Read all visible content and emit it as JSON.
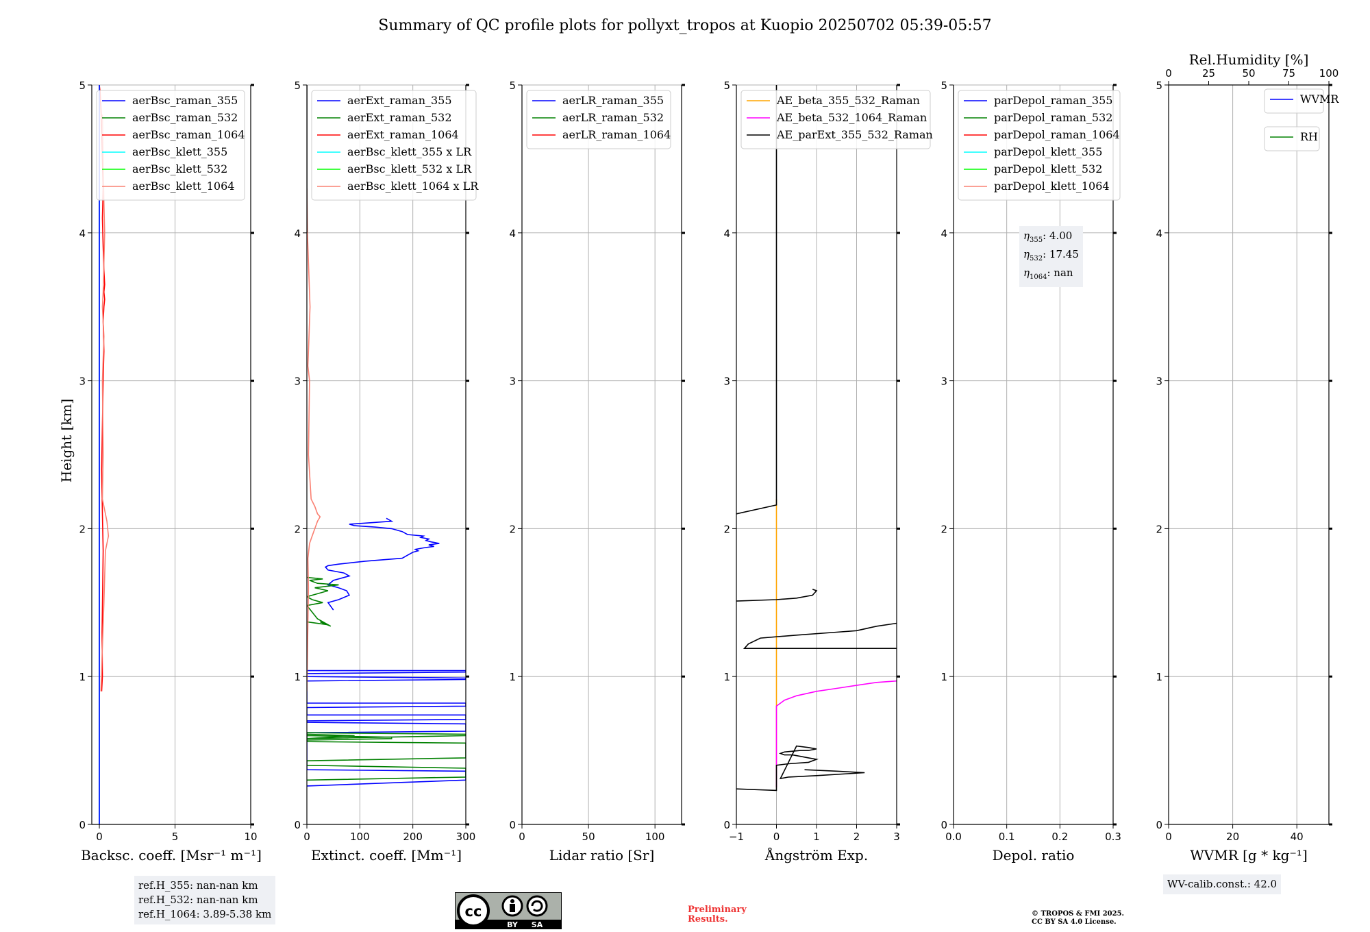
{
  "title": "Summary of QC profile plots for pollyxt_tropos at Kuopio 20250702 05:39-05:57",
  "ylabel": "Height [km]",
  "y_ticks": [
    "0",
    "1",
    "2",
    "3",
    "4",
    "5"
  ],
  "colors": {
    "blue": "#0000ff",
    "green": "#008000",
    "red": "#ff0000",
    "cyan": "#00ffff",
    "lime": "#00ff00",
    "salmon": "#fa8072",
    "orange": "#ffa500",
    "magenta": "#ff00ff",
    "black": "#000000"
  },
  "chart_data": [
    {
      "type": "line",
      "name": "backscatter",
      "xlabel": "Backsc. coeff. [Msr⁻¹ m⁻¹]",
      "xlim": [
        -0.5,
        10
      ],
      "ylim": [
        0,
        5
      ],
      "x_ticks": [
        0,
        5,
        10
      ],
      "legend": [
        "aerBsc_raman_355",
        "aerBsc_raman_532",
        "aerBsc_raman_1064",
        "aerBsc_klett_355",
        "aerBsc_klett_532",
        "aerBsc_klett_1064"
      ],
      "legend_colors": [
        "blue",
        "green",
        "red",
        "cyan",
        "lime",
        "salmon"
      ],
      "series": [
        {
          "color": "red",
          "x": [
            0.15,
            0.2,
            0.18,
            0.22,
            0.25,
            0.2,
            0.15,
            0.2,
            0.25,
            0.3,
            0.25,
            0.3,
            0.35,
            0.3,
            0.35,
            0.3,
            0.25,
            0.2,
            0.25,
            0.2,
            0.15,
            0.1,
            0.05,
            0.0
          ],
          "y": [
            0.9,
            1.0,
            1.3,
            1.6,
            1.85,
            2.1,
            2.4,
            2.7,
            3.0,
            3.2,
            3.4,
            3.5,
            3.55,
            3.6,
            3.65,
            3.75,
            3.9,
            4.1,
            4.3,
            4.5,
            4.7,
            4.85,
            4.95,
            5.0
          ]
        },
        {
          "color": "salmon",
          "x": [
            0.1,
            0.3,
            0.4,
            0.5,
            0.6,
            0.5,
            0.4,
            0.2,
            0.25,
            0.2,
            0.3,
            0.2,
            0.25,
            0.3,
            0.35,
            0.3,
            0.25,
            0.2
          ],
          "y": [
            0.9,
            1.5,
            1.85,
            1.9,
            1.95,
            2.05,
            2.1,
            2.2,
            2.5,
            3.0,
            3.3,
            3.5,
            3.6,
            3.8,
            4.0,
            4.2,
            4.5,
            4.8
          ]
        },
        {
          "color": "cyan",
          "x": [
            0,
            0,
            0
          ],
          "y": [
            0,
            2,
            5
          ]
        },
        {
          "color": "blue",
          "x": [
            0,
            0
          ],
          "y": [
            0,
            5
          ]
        }
      ]
    },
    {
      "type": "line",
      "name": "extinction",
      "xlabel": "Extinct. coeff. [Mm⁻¹]",
      "xlim": [
        0,
        300
      ],
      "ylim": [
        0,
        5
      ],
      "x_ticks": [
        0,
        100,
        200,
        300
      ],
      "legend": [
        "aerExt_raman_355",
        "aerExt_raman_532",
        "aerExt_raman_1064",
        "aerBsc_klett_355 x LR",
        "aerBsc_klett_532 x LR",
        "aerBsc_klett_1064 x LR"
      ],
      "legend_colors": [
        "blue",
        "green",
        "red",
        "cyan",
        "lime",
        "salmon"
      ],
      "series": [
        {
          "color": "blue",
          "x": [
            0,
            300,
            300,
            0,
            0,
            300,
            300,
            0,
            0,
            300,
            300,
            0,
            0,
            300,
            300,
            0,
            0,
            300,
            300,
            0,
            0,
            300,
            300,
            0
          ],
          "y": [
            0.26,
            0.3,
            0.36,
            0.37,
            0.62,
            0.63,
            0.68,
            0.69,
            0.7,
            0.71,
            0.74,
            0.74,
            0.79,
            0.8,
            0.82,
            0.82,
            0.97,
            0.98,
            0.99,
            1.0,
            1.02,
            1.03,
            1.04,
            1.04
          ]
        },
        {
          "color": "blue",
          "x": [
            50,
            40,
            60,
            80,
            75,
            60,
            40,
            50,
            80,
            70,
            40,
            35,
            40,
            60,
            110,
            180,
            190,
            200,
            210,
            205,
            220,
            240,
            230,
            250,
            235,
            225,
            230,
            215,
            220,
            190,
            180,
            160,
            130,
            90,
            80,
            120,
            160,
            150
          ],
          "y": [
            1.45,
            1.5,
            1.52,
            1.55,
            1.58,
            1.6,
            1.62,
            1.65,
            1.68,
            1.7,
            1.72,
            1.74,
            1.75,
            1.76,
            1.78,
            1.8,
            1.82,
            1.84,
            1.85,
            1.86,
            1.87,
            1.88,
            1.89,
            1.9,
            1.91,
            1.92,
            1.93,
            1.94,
            1.95,
            1.96,
            1.98,
            2.0,
            2.01,
            2.02,
            2.03,
            2.04,
            2.05,
            2.07
          ]
        },
        {
          "color": "green",
          "x": [
            0,
            300,
            300,
            0,
            0,
            300,
            300,
            0,
            0,
            300,
            300,
            0,
            0,
            160,
            160,
            0,
            0,
            90,
            0
          ],
          "y": [
            0.3,
            0.32,
            0.38,
            0.4,
            0.43,
            0.45,
            0.55,
            0.56,
            0.58,
            0.6,
            0.61,
            0.62,
            0.57,
            0.58,
            0.59,
            0.6,
            0.58,
            0.6,
            0.61
          ]
        },
        {
          "color": "green",
          "x": [
            0,
            40,
            25,
            45,
            20,
            0,
            30,
            10,
            0,
            20,
            40,
            15,
            60,
            20,
            5,
            30,
            0
          ],
          "y": [
            1.37,
            1.35,
            1.37,
            1.34,
            1.39,
            1.48,
            1.5,
            1.52,
            1.54,
            1.56,
            1.58,
            1.6,
            1.62,
            1.63,
            1.65,
            1.66,
            1.67
          ]
        },
        {
          "color": "salmon",
          "x": [
            0,
            3,
            2,
            5,
            10,
            15,
            20,
            25,
            20,
            15,
            8,
            3,
            5,
            2,
            4,
            6,
            3,
            1,
            0
          ],
          "y": [
            0.9,
            1.6,
            1.8,
            1.9,
            1.95,
            2.0,
            2.05,
            2.08,
            2.1,
            2.15,
            2.2,
            2.5,
            3.0,
            3.1,
            3.3,
            3.5,
            3.8,
            4.0,
            4.3
          ]
        },
        {
          "color": "black",
          "x": [
            0,
            0
          ],
          "y": [
            4.0,
            5.0
          ]
        }
      ]
    },
    {
      "type": "line",
      "name": "lidar_ratio",
      "xlabel": "Lidar ratio [Sr]",
      "xlim": [
        0,
        120
      ],
      "ylim": [
        0,
        5
      ],
      "x_ticks": [
        0,
        50,
        100
      ],
      "legend": [
        "aerLR_raman_355",
        "aerLR_raman_532",
        "aerLR_raman_1064"
      ],
      "legend_colors": [
        "blue",
        "green",
        "red"
      ],
      "series": []
    },
    {
      "type": "line",
      "name": "angstrom",
      "xlabel": "Ångström Exp.",
      "xlim": [
        -1,
        3
      ],
      "ylim": [
        0,
        5
      ],
      "x_ticks": [
        "−1",
        "0",
        "1",
        "2",
        "3"
      ],
      "legend": [
        "AE_beta_355_532_Raman",
        "AE_beta_532_1064_Raman",
        "AE_parExt_355_532_Raman"
      ],
      "legend_colors": [
        "orange",
        "magenta",
        "black"
      ],
      "series": [
        {
          "color": "orange",
          "x": [
            0,
            0
          ],
          "y": [
            0.25,
            2.2
          ]
        },
        {
          "color": "magenta",
          "x": [
            0,
            0,
            0.2,
            0.5,
            1.0,
            1.5,
            2.0,
            2.5,
            3.0
          ],
          "y": [
            0.25,
            0.8,
            0.84,
            0.87,
            0.9,
            0.92,
            0.94,
            0.96,
            0.97
          ]
        },
        {
          "color": "black",
          "x": [
            -1,
            0,
            0,
            0.3,
            0.8,
            1.0,
            0.8,
            0.6,
            0.4,
            0.2,
            0.1,
            0.2,
            0.6,
            0.8,
            1.0,
            0.8,
            0.5,
            0.1,
            0.3,
            1.0,
            2.2,
            1.5,
            0.7
          ],
          "y": [
            0.24,
            0.23,
            0.4,
            0.41,
            0.42,
            0.44,
            0.45,
            0.46,
            0.47,
            0.47,
            0.48,
            0.49,
            0.5,
            0.5,
            0.51,
            0.52,
            0.53,
            0.31,
            0.32,
            0.33,
            0.35,
            0.36,
            0.37
          ]
        },
        {
          "color": "black",
          "x": [
            3,
            0,
            -0.8,
            -0.7,
            -0.4,
            0.5,
            1.5,
            2.0,
            2.5,
            3.0
          ],
          "y": [
            1.19,
            1.19,
            1.19,
            1.22,
            1.26,
            1.28,
            1.3,
            1.31,
            1.34,
            1.36
          ]
        },
        {
          "color": "black",
          "x": [
            -1,
            0,
            0.5,
            0.9,
            1.0,
            0.9
          ],
          "y": [
            1.51,
            1.52,
            1.53,
            1.55,
            1.58,
            1.59
          ]
        },
        {
          "color": "black",
          "x": [
            -1,
            0,
            0,
            0,
            0
          ],
          "y": [
            2.1,
            2.16,
            2.17,
            4.0,
            5.0
          ]
        }
      ]
    },
    {
      "type": "line",
      "name": "depol",
      "xlabel": "Depol. ratio",
      "xlim": [
        0,
        0.3
      ],
      "ylim": [
        0,
        5
      ],
      "x_ticks": [
        "0.0",
        "0.1",
        "0.2",
        "0.3"
      ],
      "legend": [
        "parDepol_raman_355",
        "parDepol_raman_532",
        "parDepol_raman_1064",
        "parDepol_klett_355",
        "parDepol_klett_532",
        "parDepol_klett_1064"
      ],
      "legend_colors": [
        "blue",
        "green",
        "red",
        "cyan",
        "lime",
        "salmon"
      ],
      "eta": {
        "eta355": "4.00",
        "eta532": "17.45",
        "eta1064": "nan"
      },
      "series": []
    },
    {
      "type": "line",
      "name": "wvmr",
      "xlabel": "WVMR [g * kg⁻¹]",
      "xlim": [
        0,
        50
      ],
      "ylim": [
        0,
        5
      ],
      "x_ticks": [
        0,
        20,
        40
      ],
      "x2label": "Rel.Humidity [%]",
      "x2_ticks": [
        0,
        25,
        50,
        75,
        100
      ],
      "legend": [
        "WVMR"
      ],
      "legend_colors": [
        "blue"
      ],
      "legend2": [
        "RH"
      ],
      "legend2_colors": [
        "green"
      ],
      "series": []
    }
  ],
  "ref_heights": [
    "ref.H_355: nan-nan km",
    "ref.H_532: nan-nan km",
    "ref.H_1064: 3.89-5.38 km"
  ],
  "wv_calib": "WV-calib.const.: 42.0",
  "preliminary": [
    "Preliminary",
    "Results."
  ],
  "copyright": [
    "© TROPOS & FMI 2025.",
    "CC BY SA 4.0 License."
  ],
  "license_labels": {
    "cc": "cc",
    "by": "BY",
    "sa": "SA"
  }
}
